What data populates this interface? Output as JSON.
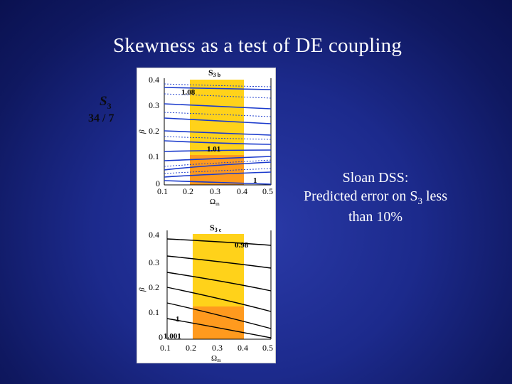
{
  "slide": {
    "title": "Skewness as a test of DE coupling",
    "side_label": {
      "symbol": "S",
      "subscript": "3",
      "ratio": "34 / 7"
    },
    "note": {
      "line1": "Sloan DSS:",
      "line2_pre": "Predicted error on S",
      "line2_sub": "3",
      "line2_post": " less",
      "line3": "than 10%"
    }
  },
  "panels": [
    {
      "id": "top",
      "label": "S3 b",
      "label_main": "S",
      "label_sub": "3 b",
      "xlabel": "Ω",
      "xlabel_sub": "m",
      "ylabel": "β",
      "xticks": [
        "0.1",
        "0.2",
        "0.3",
        "0.4",
        "0.5"
      ],
      "yticks": [
        "0",
        "0.1",
        "0.2",
        "0.3",
        "0.4"
      ],
      "contour_labels": [
        "1.08",
        "1.01",
        "1"
      ],
      "colors": {
        "band_yellow": "#ffd21a",
        "band_orange": "#ff9a1e",
        "contour": "#1a3acc"
      }
    },
    {
      "id": "bottom",
      "label": "S3 c",
      "label_main": "S",
      "label_sub": "3 c",
      "xlabel": "Ω",
      "xlabel_sub": "m",
      "ylabel": "β",
      "xticks": [
        "0.1",
        "0.2",
        "0.3",
        "0.4",
        "0.5"
      ],
      "yticks": [
        "0",
        "0.1",
        "0.2",
        "0.3",
        "0.4"
      ],
      "contour_labels": [
        "0.98",
        "1",
        "1.001"
      ],
      "colors": {
        "band_yellow": "#ffd21a",
        "band_orange": "#ff9a1e",
        "contour": "#000000"
      }
    }
  ]
}
